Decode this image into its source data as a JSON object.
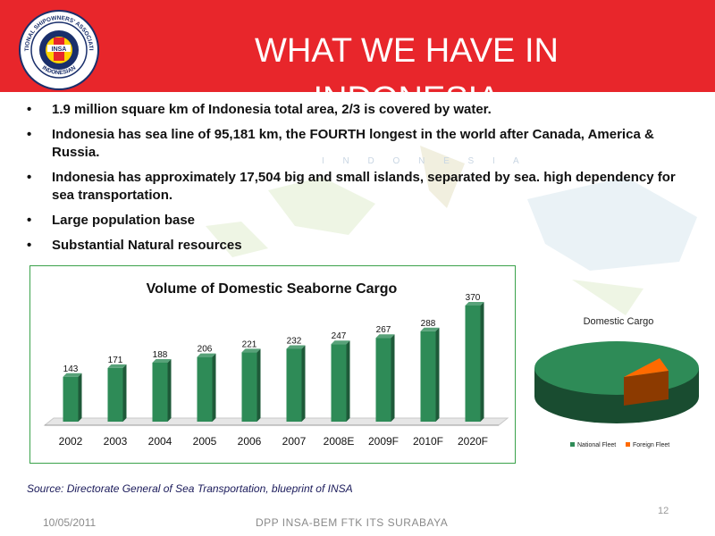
{
  "header": {
    "title": "WHAT WE HAVE IN INDONESIA",
    "logo_text_outer": "NATIONAL SHIPOWNERS' ASSOCIATION",
    "logo_text_inner": "INDONESIAN",
    "logo_center": "INSA",
    "accent_color": "#e8262b"
  },
  "map": {
    "label": "I N D O N E S I A"
  },
  "bullets": [
    "1.9 million square km of Indonesia total area, 2/3 is covered by water.",
    "Indonesia has sea line of 95,181 km, the FOURTH longest in the world after Canada, America & Russia.",
    "Indonesia  has approximately 17,504 big and small islands, separated by sea. high dependency for sea transportation.",
    "Large population base",
    "Substantial Natural resources"
  ],
  "bullet_glyph": "•",
  "chart_data": [
    {
      "type": "bar",
      "title": "Volume of Domestic Seaborne Cargo",
      "categories": [
        "2002",
        "2003",
        "2004",
        "2005",
        "2006",
        "2007",
        "2008E",
        "2009F",
        "2010F",
        "2020F"
      ],
      "values": [
        143,
        171,
        188,
        206,
        221,
        232,
        247,
        267,
        288,
        370
      ],
      "ylim": [
        0,
        370
      ],
      "bar_color": "#2e8b57",
      "grid": false
    },
    {
      "type": "pie",
      "title": "Domestic Cargo",
      "labels": [
        "National Fleet",
        "Foreign Fleet"
      ],
      "values": [
        0.9,
        0.1
      ],
      "colors": [
        "#2e8b57",
        "#ff6a00"
      ],
      "legend": "bottom"
    }
  ],
  "footer": {
    "source": "Source: Directorate General of Sea Transportation, blueprint of INSA",
    "page_number": "12",
    "date": "10/05/2011",
    "text": "DPP INSA-BEM FTK ITS SURABAYA"
  }
}
